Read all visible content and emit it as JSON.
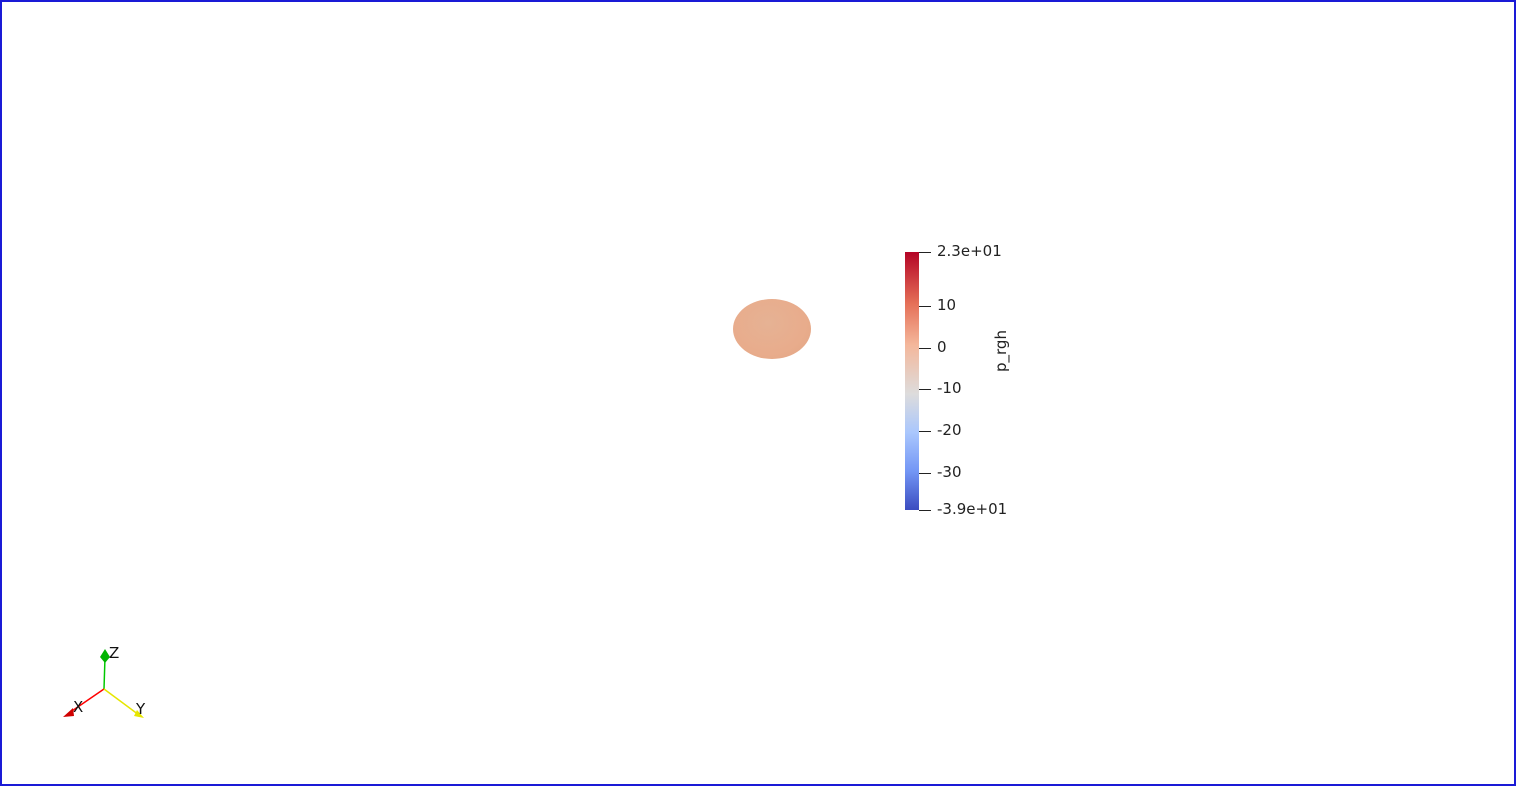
{
  "viewport": {
    "border_color": "#1a1ad6",
    "background": "#ffffff"
  },
  "scene_object": {
    "color": "#e8ac8c"
  },
  "colorbar": {
    "title": "p_rgh",
    "colormap": "Cool to Warm",
    "range": [
      -39,
      23
    ],
    "max_label": "2.3e+01",
    "min_label": "-3.9e+01",
    "ticks": [
      {
        "value": 23,
        "label": "2.3e+01"
      },
      {
        "value": 10,
        "label": "10"
      },
      {
        "value": 0,
        "label": "0"
      },
      {
        "value": -10,
        "label": "-10"
      },
      {
        "value": -20,
        "label": "-20"
      },
      {
        "value": -30,
        "label": "-30"
      },
      {
        "value": -39,
        "label": "-3.9e+01"
      }
    ],
    "colors": {
      "top": "#b40426",
      "mid": "#dddddd",
      "bottom": "#3b4cc0"
    }
  },
  "orientation_axes": {
    "x_label": "X",
    "y_label": "Y",
    "z_label": "Z",
    "x_color": "#ff0000",
    "y_color": "#ffff00",
    "z_color": "#00c800"
  }
}
